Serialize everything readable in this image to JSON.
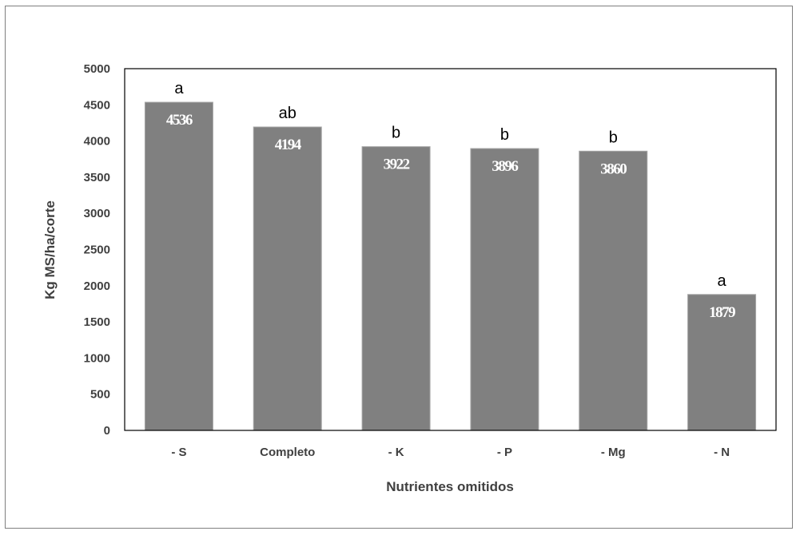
{
  "chart_data": {
    "type": "bar",
    "categories": [
      "- S",
      "Completo",
      "- K",
      "- P",
      "- Mg",
      "- N"
    ],
    "values": [
      4536,
      4194,
      3922,
      3896,
      3860,
      1879
    ],
    "value_labels": [
      "4536",
      "4194",
      "3922",
      "3896",
      "3860",
      "1879"
    ],
    "significance_letters": [
      "a",
      "ab",
      "b",
      "b",
      "b",
      "a"
    ],
    "xlabel": "Nutrientes omitidos",
    "ylabel": "Kg MS/ha/corte",
    "ylim": [
      0,
      5000
    ],
    "yticks": [
      "0",
      "500",
      "1000",
      "1500",
      "2000",
      "2500",
      "3000",
      "3500",
      "4000",
      "4500",
      "5000"
    ],
    "grid": false,
    "legend": "none",
    "colors": {
      "bar": "#808080",
      "bar_edge": "#a6a6a6",
      "plot_border": "#000000",
      "frame_border": "#7f7f7f"
    }
  }
}
